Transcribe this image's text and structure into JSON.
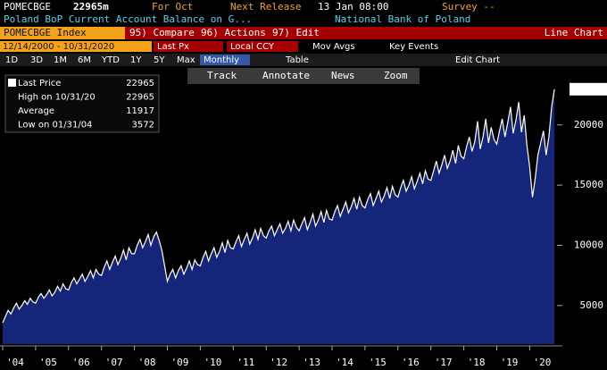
{
  "header": {
    "ticker": "POMECBGE",
    "value": "22965m",
    "period": "For Oct",
    "release_label": "Next Release",
    "release": "13 Jan 08:00",
    "survey": "Survey --",
    "name": "Poland BoP Current Account Balance on G...",
    "source": "National Bank of Poland"
  },
  "toolbar": {
    "security": "POMECBGE Index",
    "buttons": [
      "95) Compare",
      "96) Actions",
      "97) Edit"
    ],
    "view": "Line Chart",
    "range": "12/14/2000 - 10/31/2020",
    "price": "Last Px",
    "currency": "Local CCY",
    "extras": [
      "Mov Avgs",
      "Key Events"
    ],
    "periods": [
      "1D",
      "3D",
      "1M",
      "6M",
      "YTD",
      "1Y",
      "5Y",
      "Max"
    ],
    "frequency": "Monthly",
    "table": "Table",
    "edit": "Edit Chart",
    "tools": [
      "Track",
      "Annotate",
      "News",
      "Zoom"
    ]
  },
  "chart_data": {
    "type": "line",
    "x": [
      "2004-01",
      "2004-02",
      "2004-03",
      "2004-04",
      "2004-05",
      "2004-06",
      "2004-07",
      "2004-08",
      "2004-09",
      "2004-10",
      "2004-11",
      "2004-12",
      "2005-01",
      "2005-02",
      "2005-03",
      "2005-04",
      "2005-05",
      "2005-06",
      "2005-07",
      "2005-08",
      "2005-09",
      "2005-10",
      "2005-11",
      "2005-12",
      "2006-01",
      "2006-02",
      "2006-03",
      "2006-04",
      "2006-05",
      "2006-06",
      "2006-07",
      "2006-08",
      "2006-09",
      "2006-10",
      "2006-11",
      "2006-12",
      "2007-01",
      "2007-02",
      "2007-03",
      "2007-04",
      "2007-05",
      "2007-06",
      "2007-07",
      "2007-08",
      "2007-09",
      "2007-10",
      "2007-11",
      "2007-12",
      "2008-01",
      "2008-02",
      "2008-03",
      "2008-04",
      "2008-05",
      "2008-06",
      "2008-07",
      "2008-08",
      "2008-09",
      "2008-10",
      "2008-11",
      "2008-12",
      "2009-01",
      "2009-02",
      "2009-03",
      "2009-04",
      "2009-05",
      "2009-06",
      "2009-07",
      "2009-08",
      "2009-09",
      "2009-10",
      "2009-11",
      "2009-12",
      "2010-01",
      "2010-02",
      "2010-03",
      "2010-04",
      "2010-05",
      "2010-06",
      "2010-07",
      "2010-08",
      "2010-09",
      "2010-10",
      "2010-11",
      "2010-12",
      "2011-01",
      "2011-02",
      "2011-03",
      "2011-04",
      "2011-05",
      "2011-06",
      "2011-07",
      "2011-08",
      "2011-09",
      "2011-10",
      "2011-11",
      "2011-12",
      "2012-01",
      "2012-02",
      "2012-03",
      "2012-04",
      "2012-05",
      "2012-06",
      "2012-07",
      "2012-08",
      "2012-09",
      "2012-10",
      "2012-11",
      "2012-12",
      "2013-01",
      "2013-02",
      "2013-03",
      "2013-04",
      "2013-05",
      "2013-06",
      "2013-07",
      "2013-08",
      "2013-09",
      "2013-10",
      "2013-11",
      "2013-12",
      "2014-01",
      "2014-02",
      "2014-03",
      "2014-04",
      "2014-05",
      "2014-06",
      "2014-07",
      "2014-08",
      "2014-09",
      "2014-10",
      "2014-11",
      "2014-12",
      "2015-01",
      "2015-02",
      "2015-03",
      "2015-04",
      "2015-05",
      "2015-06",
      "2015-07",
      "2015-08",
      "2015-09",
      "2015-10",
      "2015-11",
      "2015-12",
      "2016-01",
      "2016-02",
      "2016-03",
      "2016-04",
      "2016-05",
      "2016-06",
      "2016-07",
      "2016-08",
      "2016-09",
      "2016-10",
      "2016-11",
      "2016-12",
      "2017-01",
      "2017-02",
      "2017-03",
      "2017-04",
      "2017-05",
      "2017-06",
      "2017-07",
      "2017-08",
      "2017-09",
      "2017-10",
      "2017-11",
      "2017-12",
      "2018-01",
      "2018-02",
      "2018-03",
      "2018-04",
      "2018-05",
      "2018-06",
      "2018-07",
      "2018-08",
      "2018-09",
      "2018-10",
      "2018-11",
      "2018-12",
      "2019-01",
      "2019-02",
      "2019-03",
      "2019-04",
      "2019-05",
      "2019-06",
      "2019-07",
      "2019-08",
      "2019-09",
      "2019-10",
      "2019-11",
      "2019-12",
      "2020-01",
      "2020-02",
      "2020-03",
      "2020-04",
      "2020-05",
      "2020-06",
      "2020-07",
      "2020-08",
      "2020-09",
      "2020-10"
    ],
    "series": [
      {
        "name": "Last Price",
        "color": "#ffffff",
        "fill": "#14257a",
        "values": [
          3572,
          4100,
          4600,
          4300,
          4800,
          5200,
          4700,
          5000,
          5400,
          5100,
          5600,
          5300,
          5200,
          5700,
          6000,
          5600,
          5900,
          6300,
          5800,
          6100,
          6600,
          6200,
          6800,
          6400,
          6300,
          6900,
          7300,
          6800,
          7200,
          7600,
          7000,
          7400,
          7900,
          7300,
          8000,
          7600,
          7500,
          8200,
          8700,
          8000,
          8600,
          9100,
          8400,
          8900,
          9600,
          8800,
          9800,
          9300,
          9300,
          10000,
          10500,
          9800,
          10300,
          10900,
          10000,
          10700,
          11100,
          10400,
          9600,
          8300,
          7000,
          7600,
          8000,
          7300,
          7900,
          8300,
          7600,
          8100,
          8700,
          8000,
          8800,
          8400,
          8300,
          9000,
          9500,
          8700,
          9300,
          9800,
          9000,
          9500,
          10200,
          9400,
          10400,
          9800,
          9700,
          10300,
          10800,
          9900,
          10500,
          11000,
          10100,
          10600,
          11300,
          10500,
          11400,
          10800,
          10600,
          11200,
          11600,
          10800,
          11300,
          11800,
          11000,
          11400,
          12000,
          11200,
          12100,
          11500,
          11200,
          11800,
          12300,
          11300,
          11900,
          12600,
          11600,
          12100,
          12800,
          11900,
          12900,
          12200,
          12100,
          12800,
          13300,
          12400,
          13000,
          13600,
          12700,
          13200,
          13900,
          13000,
          14000,
          13300,
          13100,
          13800,
          14300,
          13300,
          13900,
          14500,
          13600,
          14100,
          14800,
          13900,
          14900,
          14200,
          14000,
          14800,
          15400,
          14500,
          15000,
          15700,
          14700,
          15300,
          16000,
          15100,
          16200,
          15500,
          15400,
          16200,
          17000,
          16000,
          16700,
          17500,
          16400,
          17000,
          17900,
          16800,
          18300,
          17400,
          17200,
          18200,
          19000,
          17800,
          18600,
          20300,
          18000,
          19000,
          20500,
          18500,
          19800,
          18800,
          18400,
          19500,
          20500,
          19000,
          20200,
          21500,
          19300,
          20400,
          21900,
          19400,
          20800,
          18300,
          16500,
          14000,
          15500,
          17500,
          18500,
          19500,
          17500,
          19000,
          21500,
          22965
        ]
      }
    ],
    "ylim": [
      1800,
      23100
    ],
    "yticks": [
      5000,
      10000,
      15000,
      20000
    ],
    "xticks": [
      {
        "value": "2004-01",
        "label": "'04"
      },
      {
        "value": "2005-01",
        "label": "'05"
      },
      {
        "value": "2006-01",
        "label": "'06"
      },
      {
        "value": "2007-01",
        "label": "'07"
      },
      {
        "value": "2008-01",
        "label": "'08"
      },
      {
        "value": "2009-01",
        "label": "'09"
      },
      {
        "value": "2010-01",
        "label": "'10"
      },
      {
        "value": "2011-01",
        "label": "'11"
      },
      {
        "value": "2012-01",
        "label": "'12"
      },
      {
        "value": "2013-01",
        "label": "'13"
      },
      {
        "value": "2014-01",
        "label": "'14"
      },
      {
        "value": "2015-01",
        "label": "'15"
      },
      {
        "value": "2016-01",
        "label": "'16"
      },
      {
        "value": "2017-01",
        "label": "'17"
      },
      {
        "value": "2018-01",
        "label": "'18"
      },
      {
        "value": "2019-01",
        "label": "'19"
      },
      {
        "value": "2020-01",
        "label": "'20"
      }
    ],
    "legend": [
      {
        "label": "Last Price",
        "value": 22965
      },
      {
        "label": "High on 10/31/20",
        "value": 22965
      },
      {
        "label": "Average",
        "value": 11917
      },
      {
        "label": "Low on 01/31/04",
        "value": 3572
      }
    ]
  }
}
